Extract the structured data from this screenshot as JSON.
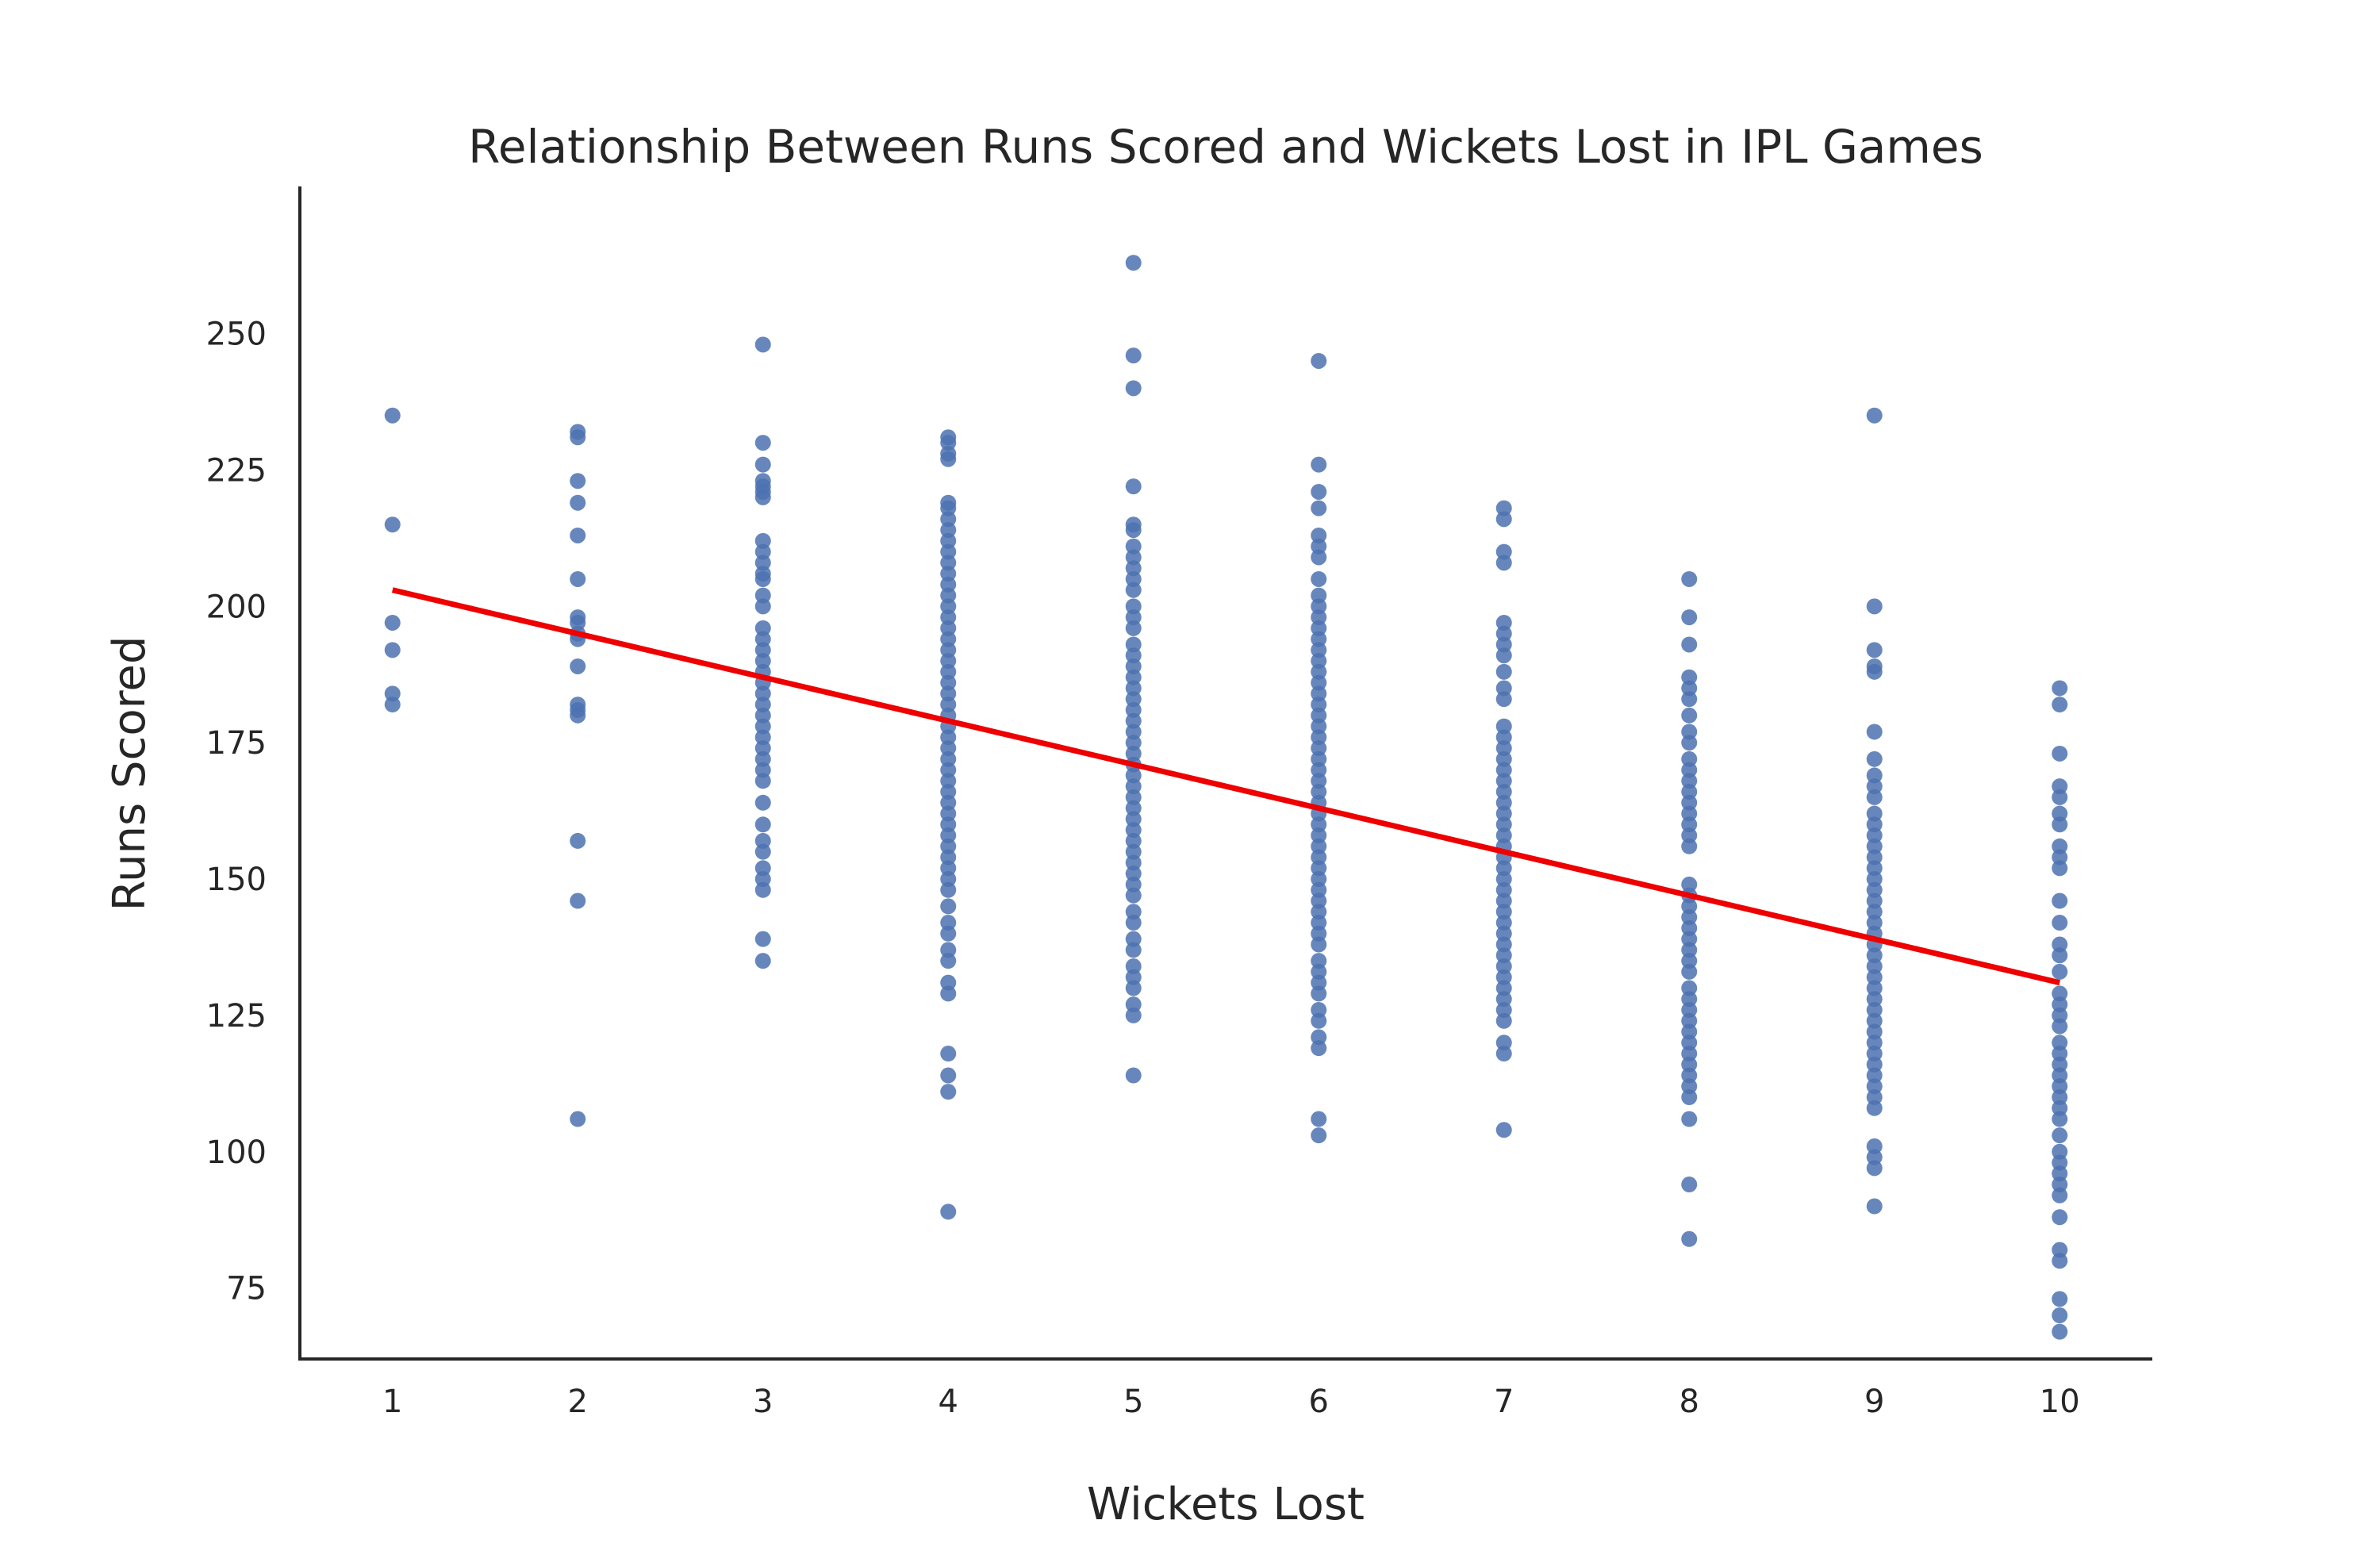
{
  "chart_data": {
    "type": "scatter",
    "title": "Relationship Between Runs Scored and Wickets Lost in IPL Games",
    "xlabel": "Wickets Lost",
    "ylabel": "Runs Scored",
    "x_ticks": [
      1,
      2,
      3,
      4,
      5,
      6,
      7,
      8,
      9,
      10
    ],
    "y_ticks": [
      75,
      100,
      125,
      150,
      175,
      200,
      225,
      250
    ],
    "xlim": [
      0.5,
      10.5
    ],
    "ylim": [
      62,
      277
    ],
    "grid": false,
    "colors": {
      "points": "#4c72b0",
      "regression": "#ee0000"
    },
    "regression_line": {
      "x": [
        1,
        10
      ],
      "y": [
        203,
        131
      ]
    },
    "points": [
      {
        "x": 1,
        "y": [
          235,
          215,
          197,
          192,
          184,
          182
        ]
      },
      {
        "x": 2,
        "y": [
          232,
          231,
          223,
          219,
          213,
          205,
          198,
          197,
          195,
          194,
          189,
          182,
          181,
          180,
          157,
          146,
          106
        ]
      },
      {
        "x": 3,
        "y": [
          248,
          230,
          226,
          223,
          222,
          221,
          220,
          212,
          210,
          208,
          206,
          205,
          202,
          200,
          196,
          194,
          192,
          190,
          188,
          186,
          184,
          182,
          180,
          178,
          176,
          174,
          172,
          170,
          168,
          164,
          160,
          157,
          155,
          152,
          150,
          148,
          139,
          135
        ]
      },
      {
        "x": 4,
        "y": [
          231,
          230,
          228,
          227,
          219,
          218,
          216,
          214,
          212,
          210,
          208,
          206,
          204,
          202,
          200,
          198,
          196,
          194,
          192,
          190,
          188,
          186,
          184,
          182,
          180,
          178,
          176,
          174,
          172,
          170,
          168,
          166,
          164,
          162,
          160,
          158,
          156,
          154,
          152,
          150,
          148,
          145,
          142,
          140,
          137,
          135,
          131,
          129,
          118,
          114,
          111,
          89
        ]
      },
      {
        "x": 5,
        "y": [
          263,
          246,
          240,
          222,
          215,
          214,
          211,
          209,
          207,
          205,
          203,
          200,
          198,
          196,
          193,
          191,
          189,
          187,
          185,
          183,
          181,
          179,
          177,
          175,
          173,
          171,
          169,
          167,
          165,
          163,
          161,
          159,
          157,
          155,
          153,
          151,
          149,
          147,
          144,
          142,
          139,
          137,
          134,
          132,
          130,
          127,
          125,
          114
        ]
      },
      {
        "x": 6,
        "y": [
          245,
          226,
          221,
          218,
          213,
          211,
          209,
          205,
          202,
          200,
          198,
          196,
          194,
          192,
          190,
          188,
          186,
          184,
          182,
          180,
          178,
          176,
          174,
          172,
          170,
          168,
          166,
          164,
          162,
          160,
          158,
          156,
          154,
          152,
          150,
          148,
          146,
          144,
          142,
          140,
          138,
          135,
          133,
          131,
          129,
          126,
          124,
          121,
          119,
          106,
          103
        ]
      },
      {
        "x": 7,
        "y": [
          218,
          216,
          210,
          208,
          197,
          195,
          193,
          191,
          188,
          185,
          183,
          178,
          176,
          174,
          172,
          170,
          168,
          166,
          164,
          162,
          160,
          158,
          156,
          154,
          152,
          150,
          148,
          146,
          144,
          142,
          140,
          138,
          136,
          134,
          132,
          130,
          128,
          126,
          124,
          120,
          118,
          104
        ]
      },
      {
        "x": 8,
        "y": [
          205,
          198,
          193,
          187,
          185,
          183,
          180,
          177,
          175,
          172,
          170,
          168,
          166,
          164,
          162,
          160,
          158,
          156,
          149,
          147,
          145,
          143,
          141,
          139,
          137,
          135,
          133,
          130,
          128,
          126,
          124,
          122,
          120,
          118,
          116,
          114,
          112,
          110,
          106,
          94,
          84
        ]
      },
      {
        "x": 9,
        "y": [
          235,
          200,
          192,
          189,
          188,
          177,
          172,
          169,
          167,
          165,
          162,
          160,
          158,
          156,
          154,
          152,
          150,
          148,
          146,
          144,
          142,
          140,
          138,
          136,
          134,
          132,
          130,
          128,
          126,
          124,
          122,
          120,
          118,
          116,
          114,
          112,
          110,
          108,
          101,
          99,
          97,
          90
        ]
      },
      {
        "x": 10,
        "y": [
          185,
          182,
          173,
          167,
          165,
          162,
          160,
          156,
          154,
          152,
          146,
          142,
          138,
          136,
          133,
          129,
          127,
          125,
          123,
          120,
          118,
          116,
          114,
          112,
          110,
          108,
          106,
          103,
          100,
          98,
          96,
          94,
          92,
          88,
          82,
          80,
          73,
          70,
          67
        ]
      }
    ]
  }
}
